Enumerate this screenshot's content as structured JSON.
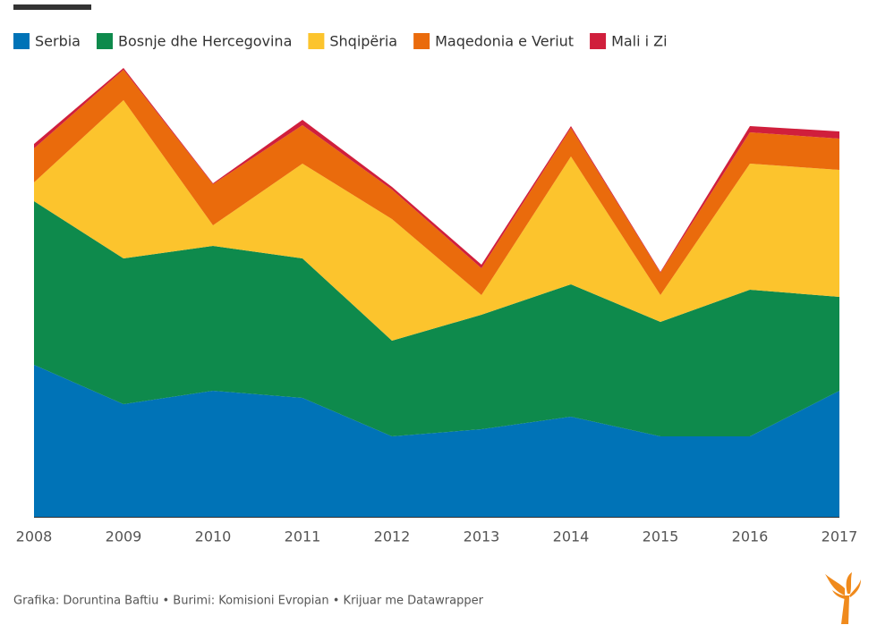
{
  "chart_data": {
    "type": "stacked_area",
    "categories": [
      "2008",
      "2009",
      "2010",
      "2011",
      "2012",
      "2013",
      "2014",
      "2015",
      "2016",
      "2017"
    ],
    "series": [
      {
        "name": "Serbia",
        "color": "#0073b7",
        "values": [
          170,
          126,
          141,
          133,
          90,
          98,
          112,
          90,
          90,
          141
        ]
      },
      {
        "name": "Bosnje dhe Hercegovina",
        "color": "#0e8a4c",
        "values": [
          183,
          163,
          162,
          156,
          107,
          128,
          148,
          128,
          164,
          105
        ]
      },
      {
        "name": "Shqipëria",
        "color": "#fcc42d",
        "values": [
          21,
          177,
          23,
          106,
          136,
          22,
          143,
          30,
          141,
          142
        ]
      },
      {
        "name": "Maqedonia e Veriut",
        "color": "#ea6b0c",
        "values": [
          38,
          34,
          46,
          43,
          33,
          30,
          32,
          25,
          35,
          35
        ]
      },
      {
        "name": "Mali i Zi",
        "color": "#d01f3c",
        "values": [
          5,
          2,
          1,
          6,
          3,
          4,
          2,
          1,
          7,
          8
        ]
      }
    ],
    "footer": "Grafika: Doruntina Baftiu • Burimi: Komisioni Evropian • Krijuar me Datawrapper"
  }
}
